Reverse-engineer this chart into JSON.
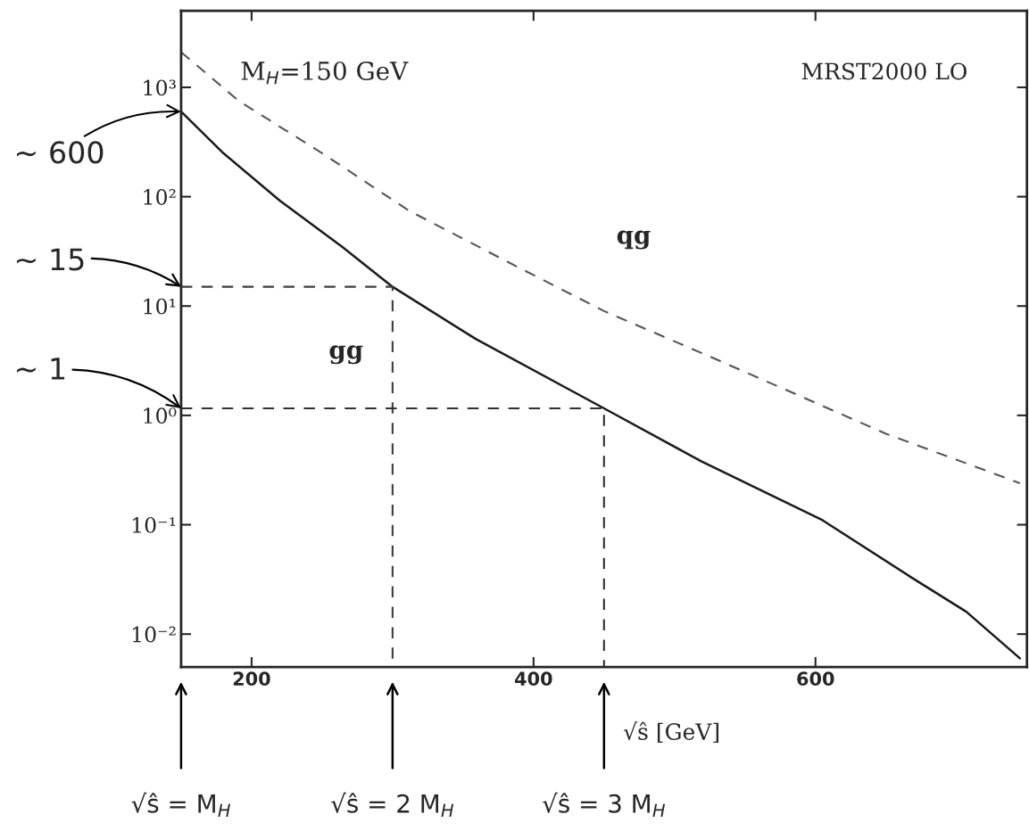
{
  "chart_data": {
    "type": "line",
    "xlabel": "√ŝ [GeV]",
    "log": "y",
    "xlim": [
      150,
      750
    ],
    "ylim": [
      0.005,
      5000
    ],
    "xticks": [
      200,
      400,
      600
    ],
    "yticks": [
      {
        "value": 0.01,
        "label": "10⁻²"
      },
      {
        "value": 0.1,
        "label": "10⁻¹"
      },
      {
        "value": 1,
        "label": "10⁰"
      },
      {
        "value": 10,
        "label": "10¹"
      },
      {
        "value": 100,
        "label": "10²"
      },
      {
        "value": 1000,
        "label": "10³"
      }
    ],
    "grid": false,
    "legend": false,
    "marker": "none",
    "series": [
      {
        "color": "#1a1a1a",
        "line_style": "solid",
        "x": [
          150,
          180,
          220,
          264,
          300,
          359,
          450,
          519,
          605,
          668,
          707,
          745
        ],
        "values": [
          600,
          250,
          92,
          35,
          15,
          5.0,
          1.16,
          0.38,
          0.11,
          0.033,
          0.016,
          0.006
        ]
      },
      {
        "color": "#555555",
        "line_style": "dashed",
        "x": [
          150,
          191,
          250,
          312,
          388,
          450,
          524,
          650,
          745
        ],
        "values": [
          2100,
          750,
          250,
          74,
          23,
          9,
          3.5,
          0.68,
          0.24
        ]
      },
      {
        "color": "#3c3c3c",
        "line_style": "dashed",
        "x": [
          150,
          300,
          300
        ],
        "values": [
          15,
          15,
          0.005
        ]
      },
      {
        "color": "#303030",
        "line_style": "dashed",
        "x": [
          150,
          450,
          450
        ],
        "values": [
          1.16,
          1.16,
          0.005
        ]
      }
    ],
    "annotations": [
      "M$_{H}$=150 GeV",
      "MRST2000 LO",
      "qg",
      "gg",
      "~ 600",
      "~ 15",
      "~ 1",
      "√ŝ = M$_{H}$",
      "√ŝ = 2 M$_{H}$",
      "√ŝ = 3 M$_{H}$"
    ]
  }
}
